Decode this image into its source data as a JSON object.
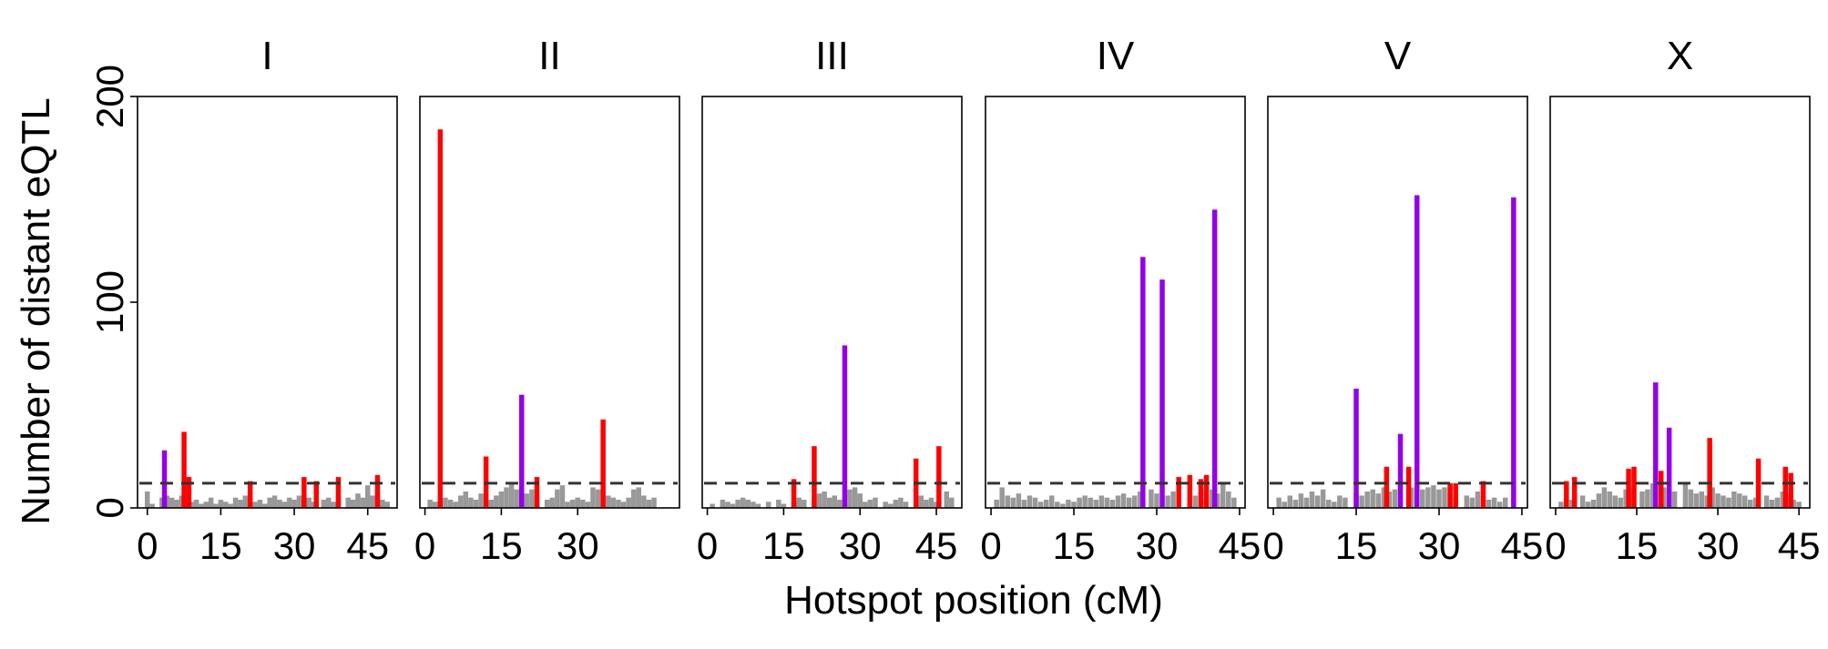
{
  "chart_data": {
    "type": "bar",
    "xlabel": "Hotspot position (cM)",
    "ylabel": "Number of distant eQTL",
    "ylim": [
      0,
      200
    ],
    "y_ticks": [
      0,
      100,
      200
    ],
    "threshold": 12,
    "colors": {
      "background_bar": "#999999",
      "red_bar": "#ff0000",
      "purple_bar": "#9400e6",
      "threshold_line": "#333333"
    },
    "panels": [
      {
        "name": "I",
        "xlim": [
          -2,
          51
        ],
        "x_ticks": [
          0,
          15,
          30,
          45
        ],
        "x_tick_labels": [
          "0",
          "15",
          "30",
          "45"
        ],
        "background": [
          [
            0,
            8
          ],
          [
            1,
            2
          ],
          [
            3,
            5
          ],
          [
            4,
            6
          ],
          [
            5,
            5
          ],
          [
            6,
            4
          ],
          [
            7,
            6
          ],
          [
            8,
            5
          ],
          [
            9,
            3
          ],
          [
            10,
            4
          ],
          [
            11,
            2
          ],
          [
            12,
            3
          ],
          [
            13,
            5
          ],
          [
            14,
            2
          ],
          [
            15,
            4
          ],
          [
            16,
            3
          ],
          [
            17,
            2
          ],
          [
            18,
            5
          ],
          [
            19,
            4
          ],
          [
            20,
            6
          ],
          [
            22,
            3
          ],
          [
            23,
            4
          ],
          [
            24,
            2
          ],
          [
            25,
            5
          ],
          [
            26,
            6
          ],
          [
            27,
            4
          ],
          [
            28,
            3
          ],
          [
            29,
            5
          ],
          [
            30,
            4
          ],
          [
            31,
            6
          ],
          [
            33,
            5
          ],
          [
            34,
            3
          ],
          [
            36,
            4
          ],
          [
            37,
            5
          ],
          [
            38,
            3
          ],
          [
            39,
            6
          ],
          [
            41,
            5
          ],
          [
            42,
            4
          ],
          [
            43,
            7
          ],
          [
            44,
            5
          ],
          [
            45,
            11
          ],
          [
            46,
            6
          ],
          [
            47,
            8
          ],
          [
            48,
            4
          ],
          [
            49,
            3
          ]
        ],
        "red": [
          [
            7.5,
            37
          ],
          [
            8.5,
            15
          ],
          [
            21,
            13
          ],
          [
            32,
            15
          ],
          [
            34.5,
            13
          ],
          [
            39,
            15
          ],
          [
            47,
            16
          ]
        ],
        "purple": [
          [
            3.5,
            28
          ]
        ]
      },
      {
        "name": "II",
        "xlim": [
          -1,
          50
        ],
        "x_ticks": [
          0,
          15,
          30
        ],
        "x_tick_labels": [
          "0",
          "15",
          "30"
        ],
        "background": [
          [
            1,
            4
          ],
          [
            2,
            3
          ],
          [
            4,
            5
          ],
          [
            5,
            4
          ],
          [
            6,
            3
          ],
          [
            7,
            6
          ],
          [
            8,
            8
          ],
          [
            9,
            5
          ],
          [
            10,
            4
          ],
          [
            11,
            7
          ],
          [
            13,
            4
          ],
          [
            14,
            6
          ],
          [
            15,
            8
          ],
          [
            16,
            10
          ],
          [
            17,
            12
          ],
          [
            18,
            9
          ],
          [
            20,
            7
          ],
          [
            21,
            9
          ],
          [
            22,
            6
          ],
          [
            24,
            4
          ],
          [
            25,
            5
          ],
          [
            26,
            9
          ],
          [
            27,
            11
          ],
          [
            28,
            3
          ],
          [
            29,
            4
          ],
          [
            30,
            5
          ],
          [
            31,
            4
          ],
          [
            32,
            3
          ],
          [
            33,
            10
          ],
          [
            34,
            9
          ],
          [
            36,
            6
          ],
          [
            37,
            5
          ],
          [
            38,
            4
          ],
          [
            39,
            3
          ],
          [
            40,
            5
          ],
          [
            41,
            9
          ],
          [
            42,
            10
          ],
          [
            43,
            6
          ],
          [
            44,
            4
          ],
          [
            45,
            5
          ]
        ],
        "red": [
          [
            3,
            184
          ],
          [
            12,
            25
          ],
          [
            22,
            15
          ],
          [
            35,
            43
          ]
        ],
        "purple": [
          [
            19,
            55
          ]
        ]
      },
      {
        "name": "III",
        "xlim": [
          -1,
          50
        ],
        "x_ticks": [
          0,
          15,
          30,
          45
        ],
        "x_tick_labels": [
          "0",
          "15",
          "30",
          "45"
        ],
        "background": [
          [
            1,
            2
          ],
          [
            3,
            4
          ],
          [
            4,
            3
          ],
          [
            5,
            2
          ],
          [
            6,
            4
          ],
          [
            7,
            5
          ],
          [
            8,
            4
          ],
          [
            9,
            3
          ],
          [
            10,
            2
          ],
          [
            12,
            3
          ],
          [
            14,
            4
          ],
          [
            15,
            2
          ],
          [
            17,
            3
          ],
          [
            18,
            5
          ],
          [
            19,
            4
          ],
          [
            21,
            6
          ],
          [
            22,
            7
          ],
          [
            23,
            8
          ],
          [
            24,
            5
          ],
          [
            25,
            6
          ],
          [
            26,
            4
          ],
          [
            28,
            9
          ],
          [
            29,
            10
          ],
          [
            30,
            7
          ],
          [
            31,
            3
          ],
          [
            32,
            4
          ],
          [
            33,
            5
          ],
          [
            35,
            3
          ],
          [
            36,
            2
          ],
          [
            37,
            4
          ],
          [
            38,
            5
          ],
          [
            39,
            3
          ],
          [
            42,
            6
          ],
          [
            43,
            4
          ],
          [
            44,
            5
          ],
          [
            45,
            3
          ],
          [
            47,
            8
          ],
          [
            48,
            5
          ]
        ],
        "red": [
          [
            17,
            14
          ],
          [
            21,
            30
          ],
          [
            41,
            24
          ],
          [
            45.5,
            30
          ]
        ],
        "purple": [
          [
            27,
            79
          ]
        ]
      },
      {
        "name": "IV",
        "xlim": [
          -1,
          46
        ],
        "x_ticks": [
          0,
          15,
          30,
          45
        ],
        "x_tick_labels": [
          "0",
          "15",
          "30",
          "45"
        ],
        "background": [
          [
            1,
            4
          ],
          [
            2,
            10
          ],
          [
            3,
            6
          ],
          [
            4,
            5
          ],
          [
            5,
            7
          ],
          [
            6,
            4
          ],
          [
            7,
            6
          ],
          [
            8,
            5
          ],
          [
            9,
            3
          ],
          [
            10,
            4
          ],
          [
            11,
            6
          ],
          [
            12,
            3
          ],
          [
            13,
            2
          ],
          [
            14,
            4
          ],
          [
            15,
            3
          ],
          [
            16,
            5
          ],
          [
            17,
            6
          ],
          [
            18,
            5
          ],
          [
            19,
            4
          ],
          [
            20,
            6
          ],
          [
            21,
            5
          ],
          [
            22,
            4
          ],
          [
            23,
            6
          ],
          [
            24,
            7
          ],
          [
            25,
            5
          ],
          [
            26,
            6
          ],
          [
            27,
            8
          ],
          [
            29,
            9
          ],
          [
            30,
            7
          ],
          [
            32,
            6
          ],
          [
            33,
            8
          ],
          [
            34,
            7
          ],
          [
            36,
            10
          ],
          [
            37,
            6
          ],
          [
            38,
            8
          ],
          [
            39,
            5
          ],
          [
            40,
            9
          ],
          [
            41,
            7
          ],
          [
            42,
            12
          ],
          [
            43,
            8
          ],
          [
            44,
            5
          ]
        ],
        "red": [
          [
            34,
            15
          ],
          [
            36,
            16
          ],
          [
            38,
            14
          ],
          [
            39,
            16
          ]
        ],
        "purple": [
          [
            27.5,
            122
          ],
          [
            31,
            111
          ],
          [
            40.5,
            145
          ]
        ]
      },
      {
        "name": "V",
        "xlim": [
          -1,
          46
        ],
        "x_ticks": [
          0,
          15,
          30,
          45
        ],
        "x_tick_labels": [
          "0",
          "15",
          "30",
          "45"
        ],
        "background": [
          [
            1,
            5
          ],
          [
            2,
            3
          ],
          [
            3,
            6
          ],
          [
            4,
            4
          ],
          [
            5,
            7
          ],
          [
            6,
            5
          ],
          [
            7,
            8
          ],
          [
            8,
            6
          ],
          [
            9,
            9
          ],
          [
            10,
            4
          ],
          [
            11,
            3
          ],
          [
            12,
            6
          ],
          [
            13,
            5
          ],
          [
            15,
            7
          ],
          [
            16,
            6
          ],
          [
            17,
            8
          ],
          [
            18,
            9
          ],
          [
            19,
            7
          ],
          [
            20,
            10
          ],
          [
            21,
            8
          ],
          [
            22,
            9
          ],
          [
            23,
            11
          ],
          [
            25,
            10
          ],
          [
            26,
            12
          ],
          [
            27,
            9
          ],
          [
            28,
            10
          ],
          [
            29,
            11
          ],
          [
            30,
            9
          ],
          [
            31,
            10
          ],
          [
            32,
            8
          ],
          [
            33,
            7
          ],
          [
            35,
            6
          ],
          [
            36,
            5
          ],
          [
            37,
            8
          ],
          [
            38,
            6
          ],
          [
            39,
            4
          ],
          [
            40,
            5
          ],
          [
            41,
            3
          ],
          [
            42,
            5
          ]
        ],
        "red": [
          [
            20.5,
            20
          ],
          [
            24.5,
            20
          ],
          [
            32,
            12
          ],
          [
            33,
            12
          ],
          [
            38,
            13
          ]
        ],
        "purple": [
          [
            15,
            58
          ],
          [
            23,
            36
          ],
          [
            26,
            152
          ],
          [
            43.5,
            151
          ]
        ]
      },
      {
        "name": "X",
        "xlim": [
          -1,
          47
        ],
        "x_ticks": [
          0,
          15,
          30,
          45
        ],
        "x_tick_labels": [
          "0",
          "15",
          "30",
          "45"
        ],
        "background": [
          [
            1,
            3
          ],
          [
            2,
            5
          ],
          [
            3,
            4
          ],
          [
            5,
            6
          ],
          [
            6,
            3
          ],
          [
            7,
            4
          ],
          [
            8,
            7
          ],
          [
            9,
            10
          ],
          [
            10,
            8
          ],
          [
            11,
            6
          ],
          [
            12,
            5
          ],
          [
            13,
            9
          ],
          [
            14,
            10
          ],
          [
            16,
            8
          ],
          [
            17,
            9
          ],
          [
            18,
            12
          ],
          [
            20,
            10
          ],
          [
            21,
            9
          ],
          [
            22,
            8
          ],
          [
            24,
            12
          ],
          [
            25,
            9
          ],
          [
            26,
            7
          ],
          [
            27,
            8
          ],
          [
            28,
            6
          ],
          [
            29,
            10
          ],
          [
            30,
            7
          ],
          [
            31,
            6
          ],
          [
            32,
            5
          ],
          [
            33,
            8
          ],
          [
            34,
            7
          ],
          [
            35,
            6
          ],
          [
            36,
            4
          ],
          [
            37,
            5
          ],
          [
            39,
            6
          ],
          [
            40,
            4
          ],
          [
            41,
            5
          ],
          [
            42,
            8
          ],
          [
            43,
            6
          ],
          [
            44,
            4
          ],
          [
            45,
            3
          ]
        ],
        "red": [
          [
            2,
            13
          ],
          [
            3.5,
            15
          ],
          [
            13.5,
            19
          ],
          [
            14.5,
            20
          ],
          [
            19.5,
            18
          ],
          [
            28.5,
            34
          ],
          [
            37.5,
            24
          ],
          [
            42.5,
            20
          ],
          [
            43.5,
            17
          ]
        ],
        "purple": [
          [
            18.5,
            61
          ],
          [
            21,
            39
          ]
        ]
      }
    ]
  }
}
